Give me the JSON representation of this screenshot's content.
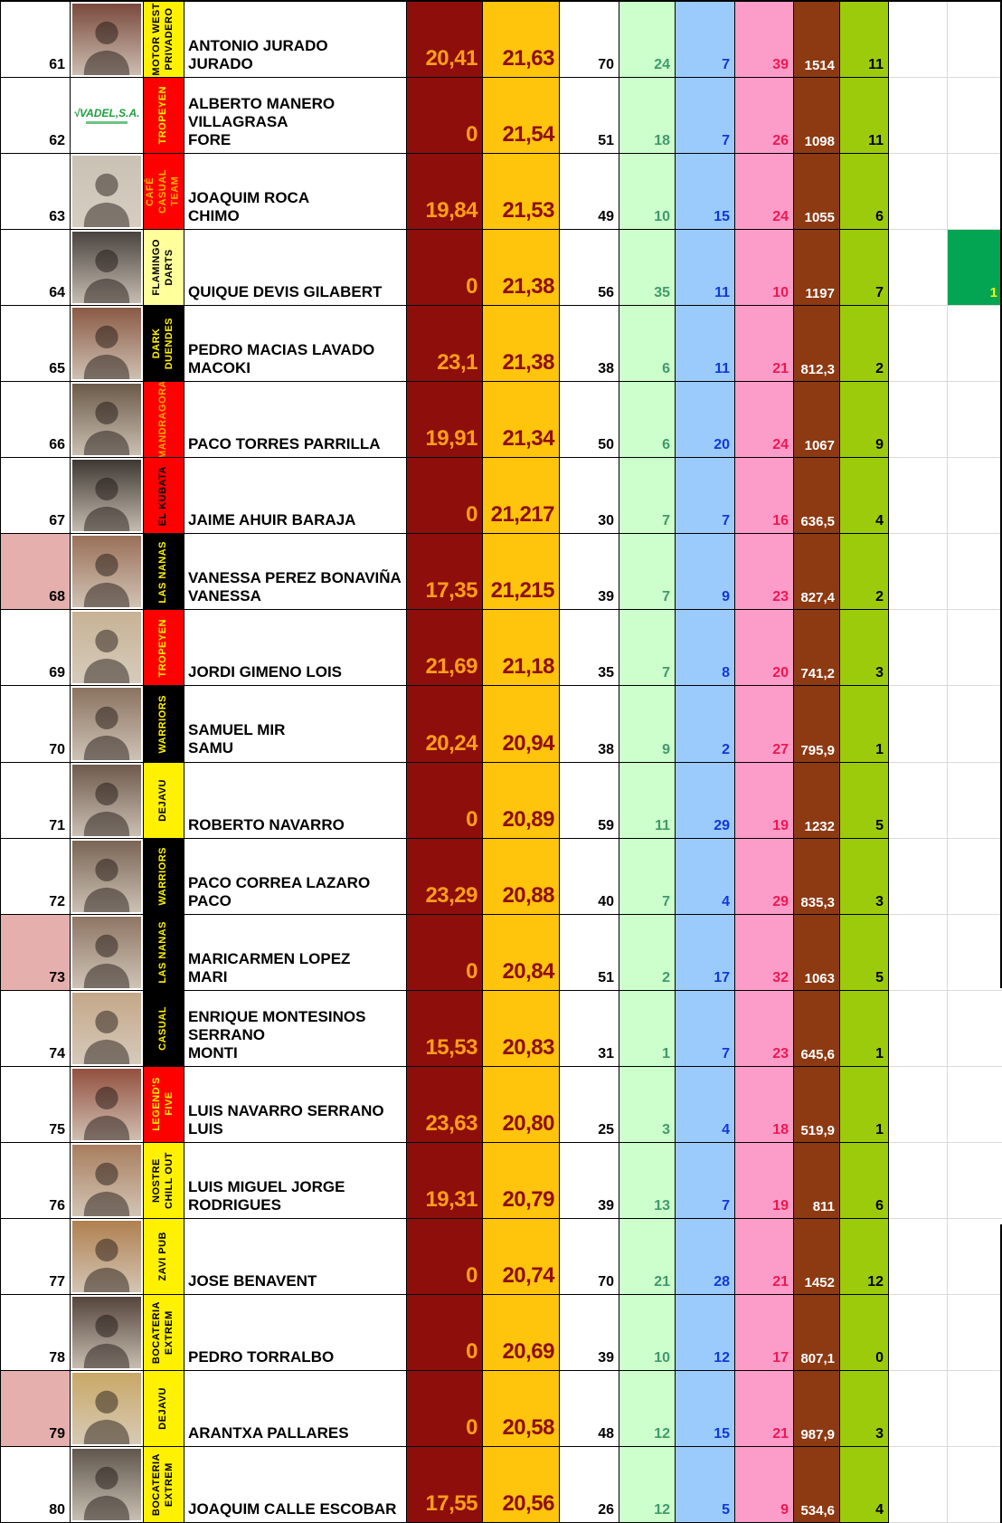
{
  "colors": {
    "dark_red_bg": "#8E0E0C",
    "dark_red_text": "#FF9E19",
    "gold_bg": "#FFC40C",
    "gold_text": "#8E0E0C",
    "green_bg": "#CCFFCC",
    "green_text": "#41996B",
    "blue_bg": "#9BCBFC",
    "blue_text": "#1238D8",
    "pink_bg": "#FC9CC9",
    "pink_text": "#EC1951",
    "brown_bg": "#8D3A13",
    "brown_text": "#FFFFFF",
    "olive_bg": "#9CCB0B",
    "olive_text": "#000000",
    "highlight_green_bg": "#04A552",
    "highlight_green_text": "#FFF100",
    "rank_pink_bg": "#E5AFAD",
    "grid_gray": "#D9D9D9"
  },
  "rows": [
    {
      "rank": "61",
      "rank_highlight": false,
      "photo": {
        "kind": "portrait",
        "tone": "#7A4A3C"
      },
      "team": {
        "label": "MOTOR WEST PRIVADERO",
        "lines": "MOTOR WEST\nPRIVADERO",
        "bg": "#FFF100",
        "fg": "#000000"
      },
      "player": "ANTONIO JURADO\nJURADO",
      "avg_local": "20,41",
      "avg_global": "21,63",
      "games": "70",
      "green": "24",
      "blue": "7",
      "pink": "39",
      "brown": "1514",
      "olive": "11",
      "highlight": ""
    },
    {
      "rank": "62",
      "rank_highlight": false,
      "photo": {
        "kind": "logo",
        "text": "VADEL,S.A."
      },
      "team": {
        "label": "TROPEYEN",
        "lines": "TROPEYEN",
        "bg": "#FE0000",
        "fg": "#FFF100"
      },
      "player": "ALBERTO MANERO\nVILLAGRASA\nFORE",
      "avg_local": "0",
      "avg_global": "21,54",
      "games": "51",
      "green": "18",
      "blue": "7",
      "pink": "26",
      "brown": "1098",
      "olive": "11",
      "highlight": ""
    },
    {
      "rank": "63",
      "rank_highlight": false,
      "photo": {
        "kind": "portrait",
        "tone": "#C9C2B4"
      },
      "team": {
        "label": "CAFÉ CASUAL TEAM",
        "lines": "CAFÉ\nCASUAL\nTEAM",
        "bg": "#FE0000",
        "fg": "#FFB400"
      },
      "player": "JOAQUIM ROCA\nCHIMO",
      "avg_local": "19,84",
      "avg_global": "21,53",
      "games": "49",
      "green": "10",
      "blue": "15",
      "pink": "24",
      "brown": "1055",
      "olive": "6",
      "highlight": ""
    },
    {
      "rank": "64",
      "rank_highlight": false,
      "photo": {
        "kind": "portrait",
        "tone": "#4A4440"
      },
      "team": {
        "label": "FLAMINGO DARTS",
        "lines": "FLAMINGO\nDARTS",
        "bg": "#FFFF9C",
        "fg": "#000000"
      },
      "player": "QUIQUE DEVIS GILABERT",
      "avg_local": "0",
      "avg_global": "21,38",
      "games": "56",
      "green": "35",
      "blue": "11",
      "pink": "10",
      "brown": "1197",
      "olive": "7",
      "highlight": "1"
    },
    {
      "rank": "65",
      "rank_highlight": false,
      "photo": {
        "kind": "portrait",
        "tone": "#8A5A44"
      },
      "team": {
        "label": "DARK DUENDES",
        "lines": "DARK\nDUENDES",
        "bg": "#000000",
        "fg": "#FFF100"
      },
      "player": "PEDRO MACIAS LAVADO\nMACOKI",
      "avg_local": "23,1",
      "avg_global": "21,38",
      "games": "38",
      "green": "6",
      "blue": "11",
      "pink": "21",
      "brown": "812,3",
      "olive": "2",
      "highlight": ""
    },
    {
      "rank": "66",
      "rank_highlight": false,
      "photo": {
        "kind": "portrait",
        "tone": "#6B5A48"
      },
      "team": {
        "label": "MANDRAGORA",
        "lines": "MANDRAGORA",
        "bg": "#FE0000",
        "fg": "#FFA800"
      },
      "player": "PACO TORRES PARRILLA",
      "avg_local": "19,91",
      "avg_global": "21,34",
      "games": "50",
      "green": "6",
      "blue": "20",
      "pink": "24",
      "brown": "1067",
      "olive": "9",
      "highlight": ""
    },
    {
      "rank": "67",
      "rank_highlight": false,
      "photo": {
        "kind": "portrait",
        "tone": "#3E3832"
      },
      "team": {
        "label": "EL KUBATA",
        "lines": "EL KUBATA",
        "bg": "#FE0000",
        "fg": "#000000"
      },
      "player": "JAIME AHUIR BARAJA",
      "avg_local": "0",
      "avg_global": "21,217",
      "games": "30",
      "green": "7",
      "blue": "7",
      "pink": "16",
      "brown": "636,5",
      "olive": "4",
      "highlight": ""
    },
    {
      "rank": "68",
      "rank_highlight": true,
      "photo": {
        "kind": "portrait",
        "tone": "#9A7058"
      },
      "team": {
        "label": "LAS NANAS",
        "lines": "LAS NANAS",
        "bg": "#000000",
        "fg": "#FFF100"
      },
      "player": "VANESSA PEREZ BONAVIÑA\nVANESSA",
      "avg_local": "17,35",
      "avg_global": "21,215",
      "games": "39",
      "green": "7",
      "blue": "9",
      "pink": "23",
      "brown": "827,4",
      "olive": "2",
      "highlight": ""
    },
    {
      "rank": "69",
      "rank_highlight": false,
      "photo": {
        "kind": "portrait",
        "tone": "#C7B294"
      },
      "team": {
        "label": "TROPEYEN",
        "lines": "TROPEYEN",
        "bg": "#FE0000",
        "fg": "#FFF100"
      },
      "player": "JORDI GIMENO LOIS",
      "avg_local": "21,69",
      "avg_global": "21,18",
      "games": "35",
      "green": "7",
      "blue": "8",
      "pink": "20",
      "brown": "741,2",
      "olive": "3",
      "highlight": ""
    },
    {
      "rank": "70",
      "rank_highlight": false,
      "photo": {
        "kind": "portrait",
        "tone": "#8A7260"
      },
      "team": {
        "label": "WARRIORS",
        "lines": "WARRIORS",
        "bg": "#000000",
        "fg": "#FFF100"
      },
      "player": "SAMUEL MIR\nSAMU",
      "avg_local": "20,24",
      "avg_global": "20,94",
      "games": "38",
      "green": "9",
      "blue": "2",
      "pink": "27",
      "brown": "795,9",
      "olive": "1",
      "highlight": ""
    },
    {
      "rank": "71",
      "rank_highlight": false,
      "photo": {
        "kind": "portrait",
        "tone": "#6E5A4C"
      },
      "team": {
        "label": "DEJAVU",
        "lines": "DEJAVU",
        "bg": "#FFF100",
        "fg": "#000000"
      },
      "player": "ROBERTO NAVARRO",
      "avg_local": "0",
      "avg_global": "20,89",
      "games": "59",
      "green": "11",
      "blue": "29",
      "pink": "19",
      "brown": "1232",
      "olive": "5",
      "highlight": ""
    },
    {
      "rank": "72",
      "rank_highlight": false,
      "photo": {
        "kind": "portrait",
        "tone": "#7A6555"
      },
      "team": {
        "label": "WARRIORS",
        "lines": "WARRIORS",
        "bg": "#000000",
        "fg": "#FFF100"
      },
      "player": "PACO CORREA LAZARO\nPACO",
      "avg_local": "23,29",
      "avg_global": "20,88",
      "games": "40",
      "green": "7",
      "blue": "4",
      "pink": "29",
      "brown": "835,3",
      "olive": "3",
      "highlight": ""
    },
    {
      "rank": "73",
      "rank_highlight": true,
      "photo": {
        "kind": "portrait",
        "tone": "#8E7664"
      },
      "team": {
        "label": "LAS NANAS",
        "lines": "LAS NANAS",
        "bg": "#000000",
        "fg": "#FFF100"
      },
      "player": "MARICARMEN LOPEZ\nMARI",
      "avg_local": "0",
      "avg_global": "20,84",
      "games": "51",
      "green": "2",
      "blue": "17",
      "pink": "32",
      "brown": "1063",
      "olive": "5",
      "highlight": ""
    },
    {
      "rank": "74",
      "rank_highlight": false,
      "photo": {
        "kind": "portrait",
        "tone": "#C4A788"
      },
      "team": {
        "label": "CASUAL",
        "lines": "CASUAL",
        "bg": "#000000",
        "fg": "#FFF100"
      },
      "player": "ENRIQUE MONTESINOS\nSERRANO\nMONTI",
      "avg_local": "15,53",
      "avg_global": "20,83",
      "games": "31",
      "green": "1",
      "blue": "7",
      "pink": "23",
      "brown": "645,6",
      "olive": "1",
      "highlight": ""
    },
    {
      "rank": "75",
      "rank_highlight": false,
      "photo": {
        "kind": "portrait",
        "tone": "#93503F"
      },
      "team": {
        "label": "LEGEND'S FIVE",
        "lines": "LEGEND'S\nFIVE",
        "bg": "#FE0000",
        "fg": "#FFF100"
      },
      "player": "LUIS NAVARRO SERRANO\nLUIS",
      "avg_local": "23,63",
      "avg_global": "20,80",
      "games": "25",
      "green": "3",
      "blue": "4",
      "pink": "18",
      "brown": "519,9",
      "olive": "1",
      "highlight": ""
    },
    {
      "rank": "76",
      "rank_highlight": false,
      "photo": {
        "kind": "portrait",
        "tone": "#A87E5E"
      },
      "team": {
        "label": "NOSTRE CHILL OUT",
        "lines": "NOSTRE\nCHILL OUT",
        "bg": "#FFF100",
        "fg": "#000000"
      },
      "player": "LUIS MIGUEL JORGE\nRODRIGUES",
      "avg_local": "19,31",
      "avg_global": "20,79",
      "games": "39",
      "green": "13",
      "blue": "7",
      "pink": "19",
      "brown": "811",
      "olive": "6",
      "highlight": ""
    },
    {
      "rank": "77",
      "rank_highlight": false,
      "photo": {
        "kind": "portrait",
        "tone": "#B08050"
      },
      "team": {
        "label": "ZAVI PUB",
        "lines": "ZAVI PUB",
        "bg": "#FFF100",
        "fg": "#000000"
      },
      "player": "JOSE BENAVENT",
      "avg_local": "0",
      "avg_global": "20,74",
      "games": "70",
      "green": "21",
      "blue": "28",
      "pink": "21",
      "brown": "1452",
      "olive": "12",
      "highlight": ""
    },
    {
      "rank": "78",
      "rank_highlight": false,
      "photo": {
        "kind": "portrait",
        "tone": "#55453C"
      },
      "team": {
        "label": "BOCATERIA EXTREM",
        "lines": "BOCATERIA\nEXTREM",
        "bg": "#FFF100",
        "fg": "#000000"
      },
      "player": "PEDRO TORRALBO",
      "avg_local": "0",
      "avg_global": "20,69",
      "games": "39",
      "green": "10",
      "blue": "12",
      "pink": "17",
      "brown": "807,1",
      "olive": "0",
      "highlight": ""
    },
    {
      "rank": "79",
      "rank_highlight": true,
      "photo": {
        "kind": "portrait",
        "tone": "#C9A866"
      },
      "team": {
        "label": "DEJAVU",
        "lines": "DEJAVU",
        "bg": "#FFF100",
        "fg": "#000000"
      },
      "player": "ARANTXA PALLARES",
      "avg_local": "0",
      "avg_global": "20,58",
      "games": "48",
      "green": "12",
      "blue": "15",
      "pink": "21",
      "brown": "987,9",
      "olive": "3",
      "highlight": ""
    },
    {
      "rank": "80",
      "rank_highlight": false,
      "photo": {
        "kind": "portrait",
        "tone": "#60564C"
      },
      "team": {
        "label": "BOCATERIA EXTREM",
        "lines": "BOCATERIA\nEXTREM",
        "bg": "#FFF100",
        "fg": "#000000"
      },
      "player": "JOAQUIM CALLE ESCOBAR",
      "avg_local": "17,55",
      "avg_global": "20,56",
      "games": "26",
      "green": "12",
      "blue": "5",
      "pink": "9",
      "brown": "534,6",
      "olive": "4",
      "highlight": ""
    }
  ]
}
